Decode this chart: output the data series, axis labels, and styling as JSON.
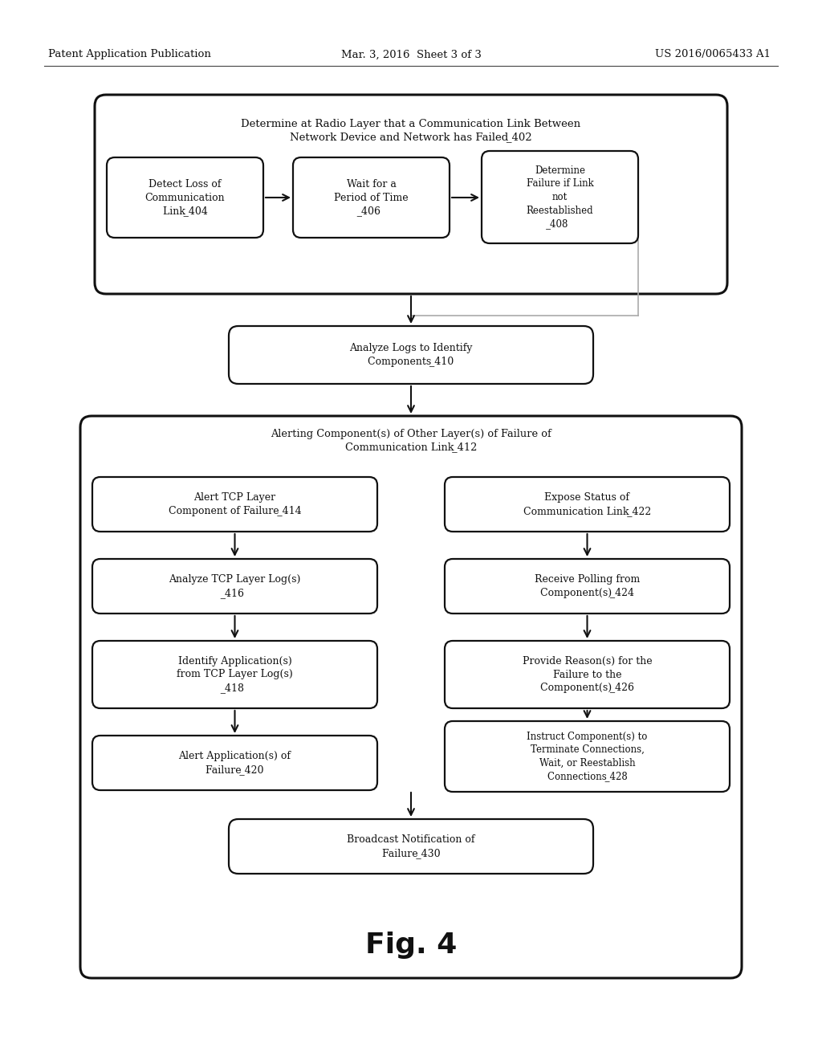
{
  "bg_color": "#ffffff",
  "header_left": "Patent Application Publication",
  "header_mid": "Mar. 3, 2016  Sheet 3 of 3",
  "header_right": "US 2016/0065433 A1",
  "fig_label": "Fig. 4",
  "font_size_box": 9.0,
  "font_size_header": 9.5,
  "font_size_fig": 26,
  "ec": "#111111",
  "lw_outer": 2.2,
  "lw_inner": 1.6
}
